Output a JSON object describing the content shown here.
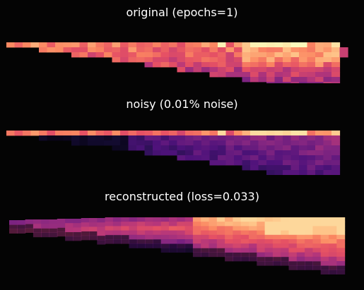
{
  "panels": [
    {
      "id": "original",
      "title": "original (epochs=1)"
    },
    {
      "id": "noisy",
      "title": "noisy (0.01% noise)"
    },
    {
      "id": "reconstructed",
      "title": "reconstructed (loss=0.033)"
    }
  ],
  "chart_data": [
    {
      "type": "heatmap",
      "title": "original (epochs=1)",
      "colormap": "magma",
      "grid": false,
      "axes_visible": false
    },
    {
      "type": "heatmap",
      "title": "noisy (0.01% noise)",
      "colormap": "magma",
      "grid": false,
      "axes_visible": false
    },
    {
      "type": "heatmap",
      "title": "reconstructed (loss=0.033)",
      "colormap": "magma",
      "grid": false,
      "axes_visible": false
    }
  ]
}
